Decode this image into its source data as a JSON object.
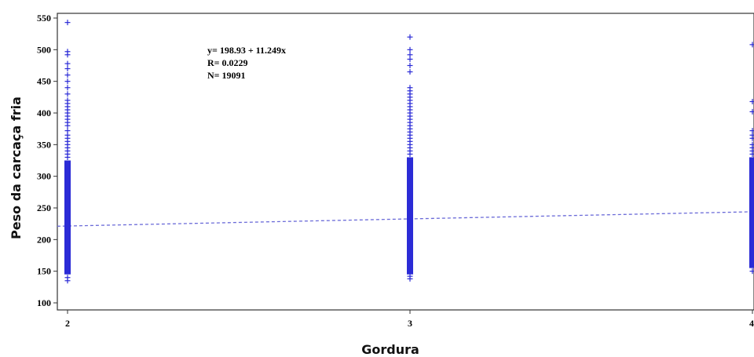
{
  "chart_data": {
    "type": "scatter",
    "xlabel": "Gordura",
    "ylabel": "Peso da carcaça fria",
    "xlim": [
      2,
      4
    ],
    "ylim": [
      100,
      550
    ],
    "xticks": [
      2,
      3,
      4
    ],
    "yticks": [
      100,
      150,
      200,
      250,
      300,
      350,
      400,
      450,
      500,
      550
    ],
    "annotations": [
      "y= 198.93 + 11.249x",
      "R= 0.0229",
      "N= 19091"
    ],
    "regression": {
      "intercept": 198.93,
      "slope": 11.249,
      "line_style": "dashed"
    },
    "marker": "+",
    "color": "#2b2bd6",
    "series": [
      {
        "x": 2,
        "dense_range": [
          145,
          325
        ],
        "points": [
          135,
          140,
          330,
          335,
          340,
          345,
          350,
          355,
          360,
          365,
          372,
          380,
          385,
          390,
          395,
          400,
          405,
          410,
          415,
          420,
          430,
          440,
          450,
          460,
          470,
          478,
          492,
          497,
          543
        ]
      },
      {
        "x": 3,
        "dense_range": [
          145,
          330
        ],
        "points": [
          138,
          142,
          335,
          340,
          345,
          350,
          355,
          360,
          365,
          370,
          375,
          380,
          385,
          390,
          395,
          400,
          405,
          410,
          415,
          420,
          425,
          430,
          435,
          440,
          465,
          475,
          485,
          492,
          500,
          520
        ]
      },
      {
        "x": 4,
        "dense_range": [
          155,
          330
        ],
        "points": [
          150,
          335,
          340,
          345,
          350,
          360,
          365,
          372,
          402,
          418,
          508
        ]
      }
    ]
  }
}
